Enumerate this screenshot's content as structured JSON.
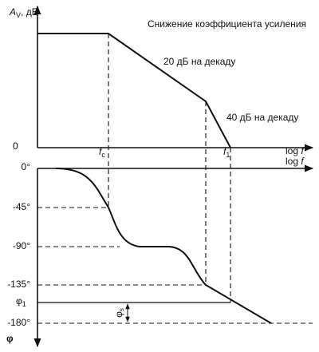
{
  "top": {
    "y_label": {
      "main": "A",
      "sub": "V",
      "unit": ", дБ"
    },
    "zero": "0",
    "title": "Снижение коэффициента усиления",
    "slope1": "20 дБ на декаду",
    "slope2": "40 дБ на декаду",
    "fc": {
      "main": "f",
      "sub": "c"
    },
    "f1": {
      "main": "f",
      "sub": "1"
    },
    "x_label": {
      "log": "log",
      "f": "f"
    }
  },
  "bottom": {
    "x_label": {
      "log": "log",
      "f": "f"
    },
    "ticks": [
      "0°",
      "-45°",
      "-90°",
      "-135°",
      "-180°"
    ],
    "phi1": {
      "main": "φ",
      "sub": "1"
    },
    "phis": {
      "main": "φ",
      "sub": "s"
    },
    "y_label": "φ"
  }
}
